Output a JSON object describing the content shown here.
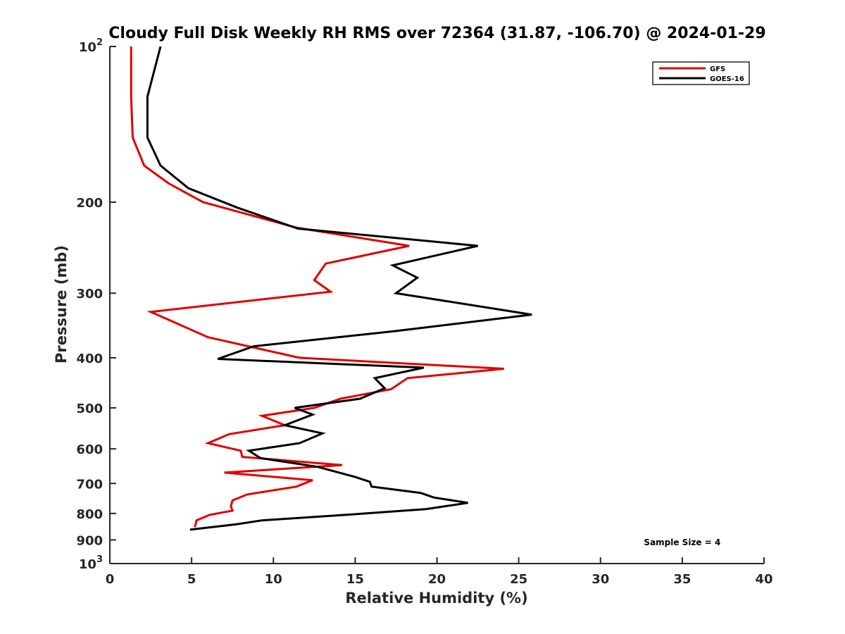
{
  "chart_data": {
    "type": "line",
    "title": "Cloudy Full Disk Weekly RH RMS over 72364 (31.87, -106.70) @ 2024-01-29",
    "xlabel": "Relative Humidity (%)",
    "ylabel": "Pressure (mb)",
    "xlim": [
      0,
      40
    ],
    "ylim": [
      100,
      1000
    ],
    "y_scale": "log",
    "y_reversed": true,
    "grid": false,
    "legend_position": "top-right",
    "x_ticks": [
      "0",
      "5",
      "10",
      "15",
      "20",
      "25",
      "30",
      "35",
      "40"
    ],
    "y_ticks": [
      {
        "value": 100,
        "base": "10",
        "exp": "2"
      },
      {
        "value": 200,
        "label": "200"
      },
      {
        "value": 300,
        "label": "300"
      },
      {
        "value": 400,
        "label": "400"
      },
      {
        "value": 500,
        "label": "500"
      },
      {
        "value": 600,
        "label": "600"
      },
      {
        "value": 700,
        "label": "700"
      },
      {
        "value": 800,
        "label": "800"
      },
      {
        "value": 900,
        "label": "900"
      },
      {
        "value": 1000,
        "base": "10",
        "exp": "3"
      }
    ],
    "series": [
      {
        "name": "GFS",
        "color": "#e00000",
        "x": [
          1.3,
          1.3,
          1.4,
          2.1,
          3.6,
          5.7,
          11.4,
          18.3,
          13.2,
          12.5,
          13.5,
          2.5,
          6.0,
          11.6,
          24.1,
          18.2,
          17.2,
          14.1,
          12.5,
          9.3,
          10.7,
          7.3,
          6.0,
          8.0,
          8.1,
          14.2,
          7.0,
          12.4,
          11.4,
          8.4,
          7.5,
          7.4,
          7.5,
          6.1,
          5.3,
          5.2
        ],
        "y": [
          100,
          125,
          150,
          170,
          184,
          200,
          224,
          243,
          263,
          283,
          298,
          326,
          365,
          400,
          420,
          438,
          460,
          480,
          500,
          518,
          540,
          562,
          585,
          605,
          622,
          645,
          667,
          690,
          710,
          735,
          755,
          775,
          790,
          805,
          825,
          850
        ]
      },
      {
        "name": "GOES-16",
        "color": "#000000",
        "x": [
          3.1,
          2.3,
          2.3,
          3.1,
          4.8,
          7.8,
          11.5,
          22.5,
          17.3,
          18.8,
          17.5,
          25.8,
          17.5,
          8.8,
          6.6,
          19.2,
          16.2,
          16.8,
          15.3,
          11.3,
          12.4,
          10.7,
          13.0,
          11.6,
          8.5,
          9.2,
          12.7,
          15.0,
          15.9,
          16.0,
          19.0,
          19.8,
          21.9,
          19.3,
          14.4,
          9.3,
          7.7,
          4.9
        ],
        "y": [
          100,
          125,
          150,
          170,
          188,
          205,
          225,
          243,
          265,
          280,
          300,
          330,
          355,
          380,
          402,
          418,
          438,
          458,
          480,
          500,
          515,
          540,
          560,
          585,
          605,
          625,
          650,
          680,
          695,
          710,
          730,
          745,
          763,
          785,
          805,
          825,
          840,
          860
        ]
      }
    ],
    "annotations": [
      {
        "text": "Sample Size = 4",
        "x": 35,
        "y": 910
      }
    ]
  }
}
